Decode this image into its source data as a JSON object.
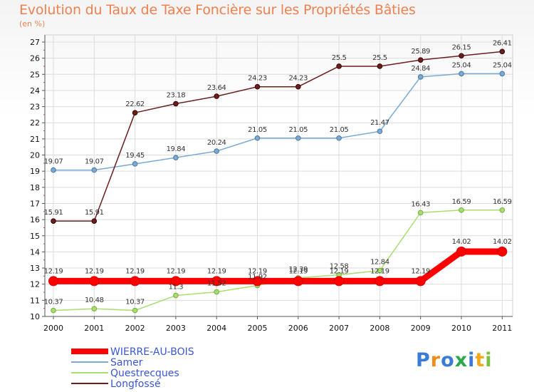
{
  "chart_data": {
    "type": "line",
    "title": "Evolution du Taux de Taxe Foncière sur les Propriétés Bâties",
    "ylabel": "(en %)",
    "xlabel": "",
    "ylim": [
      10,
      27
    ],
    "yticks": [
      10,
      11,
      12,
      13,
      14,
      15,
      16,
      17,
      18,
      19,
      20,
      21,
      22,
      23,
      24,
      25,
      26,
      27
    ],
    "categories": [
      "2000",
      "2001",
      "2002",
      "2003",
      "2004",
      "2005",
      "2006",
      "2007",
      "2008",
      "2009",
      "2010",
      "2011"
    ],
    "series": [
      {
        "name": "WIERRE-AU-BOIS",
        "color": "#ff0000",
        "thick": true,
        "values": [
          12.19,
          12.19,
          12.19,
          12.19,
          12.19,
          12.19,
          12.19,
          12.19,
          12.19,
          12.19,
          14.02,
          14.02
        ],
        "labels": [
          "12.19",
          "12.19",
          "12.19",
          "12.19",
          "12.19",
          "12.19",
          "12.19",
          "12.19",
          "12.19",
          "12.19",
          "14.02",
          "14.02"
        ]
      },
      {
        "name": "Samer",
        "color": "#7aaad4",
        "thick": false,
        "values": [
          19.07,
          19.07,
          19.45,
          19.84,
          20.24,
          21.05,
          21.05,
          21.05,
          21.47,
          24.84,
          25.04,
          25.04
        ],
        "labels": [
          "19.07",
          "19.07",
          "19.45",
          "19.84",
          "20.24",
          "21.05",
          "21.05",
          "21.05",
          "21.47",
          "24.84",
          "25.04",
          "25.04"
        ]
      },
      {
        "name": "Questrecques",
        "color": "#a8de70",
        "thick": false,
        "values": [
          10.37,
          10.48,
          10.37,
          11.3,
          11.52,
          11.92,
          12.39,
          12.58,
          12.84,
          16.43,
          16.59,
          16.59
        ],
        "labels": [
          "10.37",
          "10.48",
          "10.37",
          "11.3",
          "11.52",
          "11.92",
          "12.39",
          "12.58",
          "12.84",
          "16.43",
          "16.59",
          "16.59"
        ]
      },
      {
        "name": "Longfossé",
        "color": "#6b1e1e",
        "thick": false,
        "values": [
          15.91,
          15.91,
          22.62,
          23.18,
          23.64,
          24.23,
          24.23,
          25.5,
          25.5,
          25.89,
          26.15,
          26.41
        ],
        "labels": [
          "15.91",
          "15.91",
          "22.62",
          "23.18",
          "23.64",
          "24.23",
          "24.23",
          "25.5",
          "25.5",
          "25.89",
          "26.15",
          "26.41"
        ]
      }
    ],
    "grid": true,
    "legend_position": "bottom-left"
  },
  "branding": {
    "text": "Proxiti",
    "letters": [
      "P",
      "r",
      "o",
      "x",
      "i",
      "t",
      "i"
    ],
    "colors": [
      "#3a7bd5",
      "#f08a1c",
      "#3a7bd5",
      "#2aa84a",
      "#3a7bd5",
      "#f0a81c",
      "#7ac043"
    ]
  }
}
